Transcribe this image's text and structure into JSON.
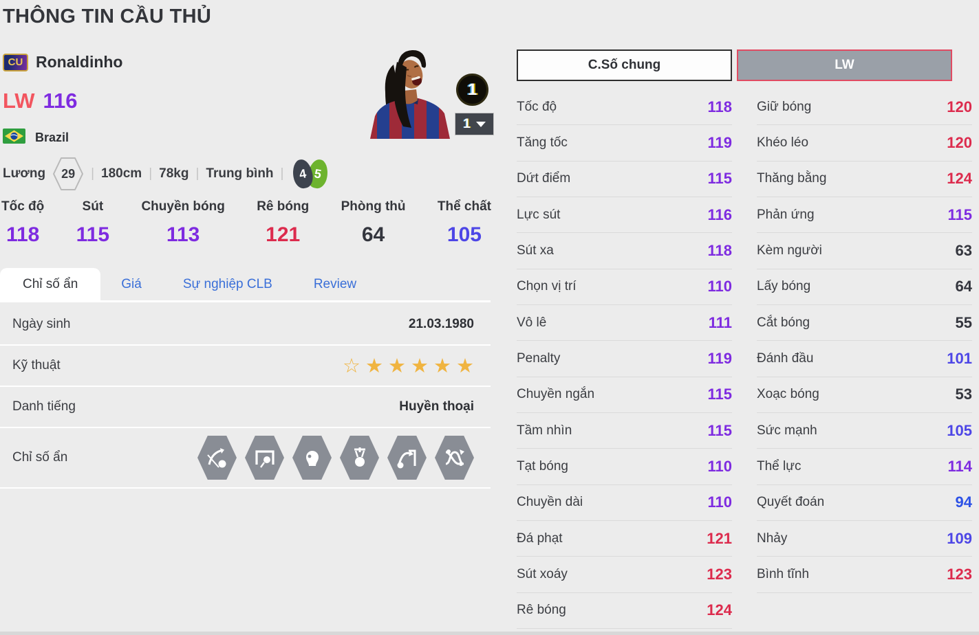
{
  "page": {
    "title": "THÔNG TIN CẦU THỦ"
  },
  "player": {
    "badge": "CU",
    "name": "Ronaldinho",
    "position": "LW",
    "rating": "116",
    "nation": "Brazil",
    "salary_label": "Lương",
    "salary": "29",
    "height": "180cm",
    "weight": "78kg",
    "body_type": "Trung bình",
    "separator": "|",
    "weak_foot": "4",
    "preferred_foot": "5",
    "enhance_badge": "1",
    "enhance_select": "1"
  },
  "summary_stats": [
    {
      "label": "Tốc độ",
      "value": "118"
    },
    {
      "label": "Sút",
      "value": "115"
    },
    {
      "label": "Chuyền bóng",
      "value": "113"
    },
    {
      "label": "Rê bóng",
      "value": "121"
    },
    {
      "label": "Phòng thủ",
      "value": "64"
    },
    {
      "label": "Thể chất",
      "value": "105"
    }
  ],
  "tabs": [
    {
      "label": "Chỉ số ẩn",
      "active": true
    },
    {
      "label": "Giá",
      "active": false
    },
    {
      "label": "Sự nghiệp CLB",
      "active": false
    },
    {
      "label": "Review",
      "active": false
    }
  ],
  "info_rows": {
    "birth": {
      "label": "Ngày sinh",
      "value": "21.03.1980"
    },
    "skill": {
      "label": "Kỹ thuật",
      "stars_empty": 1,
      "stars_filled": 5
    },
    "fame": {
      "label": "Danh tiếng",
      "value": "Huyền thoại"
    },
    "hidden": {
      "label": "Chỉ số ẩn",
      "icons": [
        "curve-shot-icon",
        "goal-shot-icon",
        "flair-head-icon",
        "ball-control-icon",
        "chip-shot-icon",
        "dribble-weave-icon"
      ]
    }
  },
  "stat_columns": [
    {
      "header": "C.Số chung",
      "active": false,
      "rows": [
        {
          "label": "Tốc độ",
          "value": "118"
        },
        {
          "label": "Tăng tốc",
          "value": "119"
        },
        {
          "label": "Dứt điểm",
          "value": "115"
        },
        {
          "label": "Lực sút",
          "value": "116"
        },
        {
          "label": "Sút xa",
          "value": "118"
        },
        {
          "label": "Chọn vị trí",
          "value": "110"
        },
        {
          "label": "Vô lê",
          "value": "111"
        },
        {
          "label": "Penalty",
          "value": "119"
        },
        {
          "label": "Chuyền ngắn",
          "value": "115"
        },
        {
          "label": "Tầm nhìn",
          "value": "115"
        },
        {
          "label": "Tạt bóng",
          "value": "110"
        },
        {
          "label": "Chuyền dài",
          "value": "110"
        },
        {
          "label": "Đá phạt",
          "value": "121"
        },
        {
          "label": "Sút xoáy",
          "value": "123"
        },
        {
          "label": "Rê bóng",
          "value": "124"
        }
      ]
    },
    {
      "header": "LW",
      "active": true,
      "rows": [
        {
          "label": "Giữ bóng",
          "value": "120"
        },
        {
          "label": "Khéo léo",
          "value": "120"
        },
        {
          "label": "Thăng bằng",
          "value": "124"
        },
        {
          "label": "Phản ứng",
          "value": "115"
        },
        {
          "label": "Kèm người",
          "value": "63"
        },
        {
          "label": "Lấy bóng",
          "value": "64"
        },
        {
          "label": "Cắt bóng",
          "value": "55"
        },
        {
          "label": "Đánh đầu",
          "value": "101"
        },
        {
          "label": "Xoạc bóng",
          "value": "53"
        },
        {
          "label": "Sức mạnh",
          "value": "105"
        },
        {
          "label": "Thể lực",
          "value": "114"
        },
        {
          "label": "Quyết đoán",
          "value": "94"
        },
        {
          "label": "Nhảy",
          "value": "109"
        },
        {
          "label": "Bình tĩnh",
          "value": "123"
        }
      ]
    }
  ],
  "colors": {
    "tier_red": "#dc2b4d",
    "tier_purple": "#7e2be0",
    "tier_violet": "#4d46e6",
    "tier_blue": "#2d52e6",
    "tier_dark": "#34363e",
    "tab_blue": "#3a6fd8",
    "star_gold": "#f0b440",
    "position_red": "#f2555f",
    "rating_purple": "#7e2be0"
  }
}
